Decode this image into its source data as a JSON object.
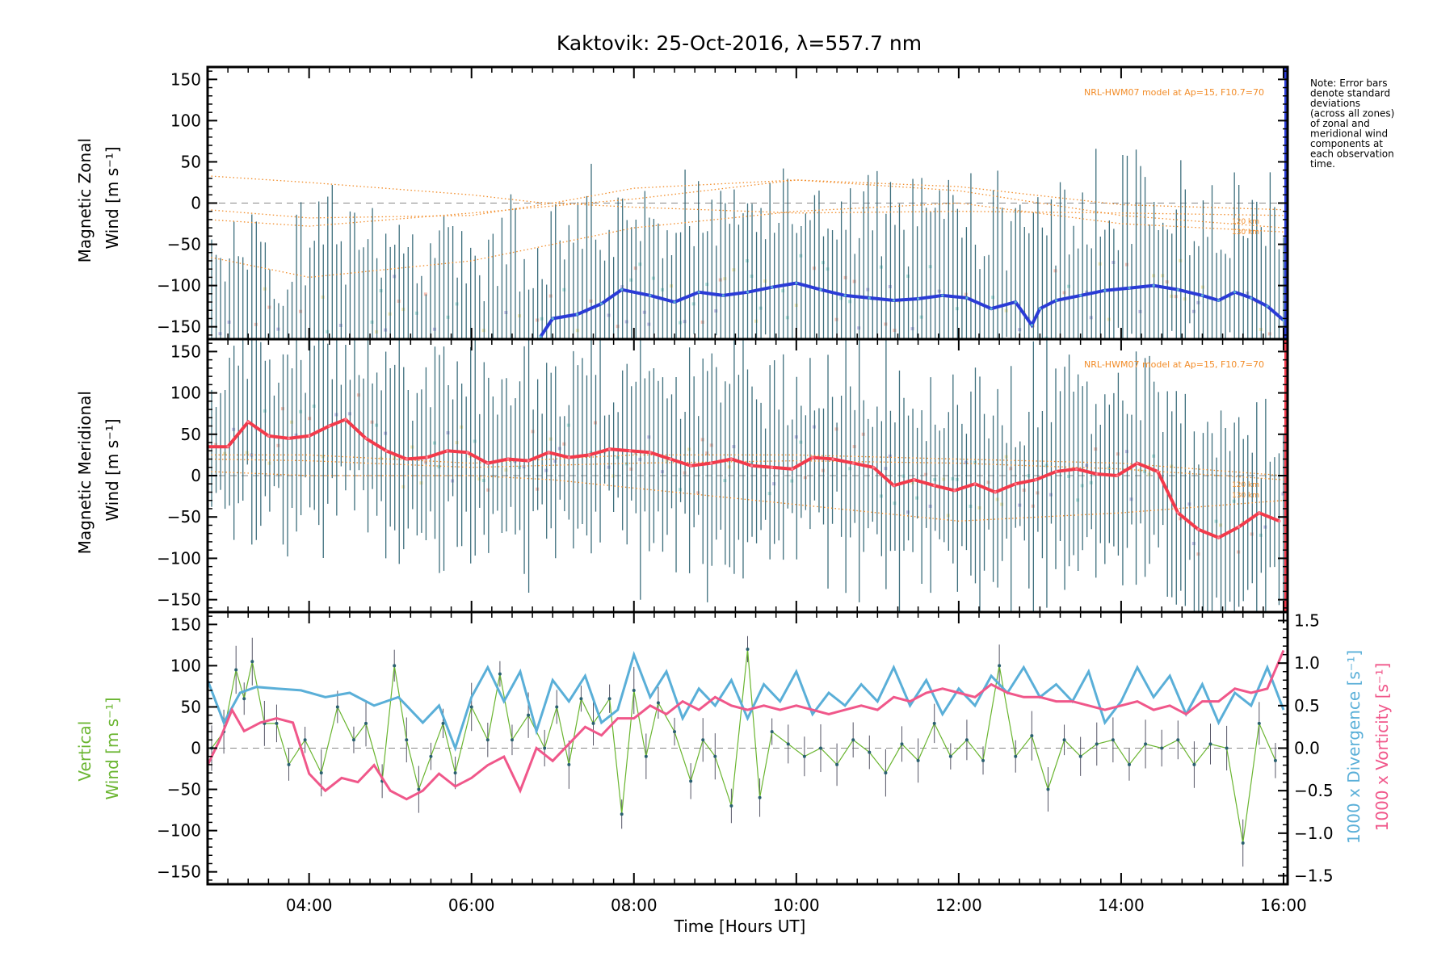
{
  "chart_data": {
    "title": "Kaktovik: 25-Oct-2016, λ=557.7 nm",
    "xlabel": "Time [Hours UT]",
    "x_ticks": [
      "04:00",
      "06:00",
      "08:00",
      "10:00",
      "12:00",
      "14:00",
      "16:00"
    ],
    "x_range_hours": [
      2.75,
      16.05
    ],
    "note_lines": [
      "Note: Error bars",
      "denote standard",
      "deviations",
      "(across all zones)",
      "of zonal and",
      "meridional wind",
      "components at",
      "each observation",
      "time."
    ],
    "colors": {
      "zonal": "#2a3bd6",
      "meridional": "#f23a4b",
      "vertical": "#6ab530",
      "divergence": "#5aafd8",
      "vorticity": "#f0578a",
      "model": "#f28c28",
      "errorbar": "#2a6070"
    },
    "panels": [
      {
        "type": "line",
        "ylabel_lines": [
          "Magnetic Zonal",
          "Wind [m s⁻¹]"
        ],
        "ylim": [
          -165,
          165
        ],
        "yticks": [
          150,
          100,
          50,
          0,
          -50,
          -100,
          -150
        ],
        "model_label": "NRL-HWM07 model at Ap=15, F10.7=70",
        "alt_labels": [
          "120 km",
          "130 km"
        ],
        "series": [
          {
            "x": [
              6.85,
              7.0,
              7.3,
              7.6,
              7.85,
              8.2,
              8.5,
              8.8,
              9.1,
              9.4,
              9.7,
              10.0,
              10.3,
              10.6,
              10.9,
              11.2,
              11.5,
              11.8,
              12.1,
              12.4,
              12.7,
              12.9,
              13.0,
              13.2,
              13.5,
              13.8,
              14.1,
              14.4,
              14.7,
              15.0,
              15.2,
              15.4,
              15.6,
              15.8,
              16.0
            ],
            "y": [
              -162,
              -140,
              -135,
              -122,
              -105,
              -112,
              -120,
              -108,
              -112,
              -108,
              -102,
              -97,
              -105,
              -112,
              -115,
              -118,
              -116,
              -112,
              -115,
              -128,
              -120,
              -148,
              -128,
              -118,
              -112,
              -106,
              -103,
              -100,
              -105,
              -112,
              -118,
              -108,
              -115,
              -125,
              -142
            ]
          }
        ],
        "model_curves": [
          {
            "x": [
              2.75,
              4,
              6,
              6.8,
              8,
              10,
              12,
              14,
              16
            ],
            "y": [
              33,
              25,
              10,
              1,
              -5,
              -12,
              -10,
              -12,
              -15
            ]
          },
          {
            "x": [
              2.75,
              4,
              6,
              7,
              8,
              10,
              12,
              14,
              16
            ],
            "y": [
              -8,
              -18,
              -15,
              0,
              18,
              28,
              15,
              -15,
              -30
            ]
          },
          {
            "x": [
              2.75,
              4,
              6,
              8,
              10,
              12,
              14,
              16
            ],
            "y": [
              -20,
              -28,
              -12,
              5,
              28,
              20,
              -2,
              -8
            ]
          },
          {
            "x": [
              2.75,
              4,
              6,
              8,
              10,
              12,
              14,
              16
            ],
            "y": [
              -65,
              -90,
              -70,
              -30,
              -10,
              0,
              -25,
              -35
            ]
          }
        ]
      },
      {
        "type": "line",
        "ylabel_lines": [
          "Magnetic Meridional",
          "Wind [m s⁻¹]"
        ],
        "ylim": [
          -165,
          165
        ],
        "yticks": [
          150,
          100,
          50,
          0,
          -50,
          -100,
          -150
        ],
        "model_label": "NRL-HWM07 model at Ap=15, F10.7=70",
        "alt_labels": [
          "120 km",
          "130 km"
        ],
        "series": [
          {
            "x": [
              2.75,
              3.0,
              3.25,
              3.5,
              3.75,
              4.0,
              4.25,
              4.45,
              4.7,
              4.95,
              5.2,
              5.45,
              5.7,
              5.95,
              6.2,
              6.45,
              6.7,
              6.95,
              7.2,
              7.45,
              7.7,
              7.95,
              8.2,
              8.45,
              8.7,
              8.95,
              9.2,
              9.45,
              9.7,
              9.95,
              10.2,
              10.45,
              10.7,
              10.95,
              11.2,
              11.45,
              11.7,
              11.95,
              12.2,
              12.45,
              12.7,
              12.95,
              13.2,
              13.45,
              13.7,
              13.95,
              14.2,
              14.45,
              14.7,
              14.95,
              15.2,
              15.45,
              15.7,
              15.95
            ],
            "y": [
              35,
              35,
              65,
              48,
              45,
              48,
              60,
              68,
              45,
              30,
              20,
              22,
              30,
              28,
              15,
              20,
              18,
              28,
              22,
              25,
              32,
              30,
              28,
              20,
              12,
              15,
              20,
              12,
              10,
              8,
              22,
              20,
              15,
              10,
              -12,
              -5,
              -12,
              -18,
              -10,
              -20,
              -10,
              -5,
              5,
              8,
              2,
              0,
              15,
              5,
              -45,
              -65,
              -75,
              -62,
              -45,
              -55
            ]
          }
        ],
        "model_curves": [
          {
            "x": [
              2.75,
              4,
              6,
              8,
              10,
              12,
              14,
              16
            ],
            "y": [
              25,
              25,
              15,
              25,
              25,
              20,
              15,
              0
            ]
          },
          {
            "x": [
              2.75,
              4,
              6,
              8,
              10,
              12,
              14,
              16
            ],
            "y": [
              20,
              18,
              10,
              15,
              18,
              15,
              8,
              -5
            ]
          },
          {
            "x": [
              2.75,
              4,
              6,
              7,
              8,
              10,
              12,
              14,
              16
            ],
            "y": [
              5,
              0,
              0,
              -5,
              -15,
              -35,
              -55,
              -45,
              -30
            ]
          }
        ]
      },
      {
        "type": "line",
        "ylabel_lines": [
          "Vertical",
          "Wind [m s⁻¹]"
        ],
        "y2label_lines": [
          "1000 x Divergence [s⁻¹]",
          "1000 x Vorticity [s⁻¹]"
        ],
        "ylim": [
          -165,
          165
        ],
        "yticks": [
          150,
          100,
          50,
          0,
          -50,
          -100,
          -150
        ],
        "y2lim": [
          -1.6,
          1.6
        ],
        "y2ticks": [
          1.5,
          1.0,
          0.5,
          0.0,
          -0.5,
          -1.0,
          -1.5
        ],
        "y2ticklabels": [
          "1.5",
          "1.0",
          "0.5",
          "0.0",
          "−0.5",
          "−1.0",
          "−1.5"
        ],
        "series": [
          {
            "axis": "left",
            "x": [
              2.8,
              2.95,
              3.1,
              3.2,
              3.3,
              3.45,
              3.6,
              3.75,
              3.95,
              4.15,
              4.35,
              4.55,
              4.7,
              4.9,
              5.05,
              5.2,
              5.35,
              5.5,
              5.65,
              5.8,
              6.0,
              6.2,
              6.35,
              6.5,
              6.7,
              6.9,
              7.05,
              7.2,
              7.35,
              7.5,
              7.7,
              7.85,
              8.0,
              8.15,
              8.3,
              8.5,
              8.7,
              8.85,
              9.0,
              9.2,
              9.4,
              9.55,
              9.7,
              9.9,
              10.1,
              10.3,
              10.5,
              10.7,
              10.9,
              11.1,
              11.3,
              11.5,
              11.7,
              11.9,
              12.1,
              12.3,
              12.5,
              12.7,
              12.9,
              13.1,
              13.3,
              13.5,
              13.7,
              13.9,
              14.1,
              14.3,
              14.5,
              14.7,
              14.9,
              15.1,
              15.3,
              15.5,
              15.7,
              15.9
            ],
            "y": [
              0,
              20,
              95,
              60,
              105,
              30,
              30,
              -20,
              10,
              -30,
              50,
              10,
              30,
              -40,
              100,
              10,
              -50,
              -10,
              30,
              -30,
              50,
              10,
              90,
              10,
              40,
              0,
              50,
              -20,
              60,
              30,
              60,
              -80,
              70,
              -10,
              55,
              20,
              -40,
              10,
              -10,
              -70,
              120,
              -60,
              20,
              5,
              -10,
              0,
              -20,
              10,
              -5,
              -30,
              5,
              -15,
              30,
              -10,
              10,
              -15,
              100,
              -10,
              15,
              -50,
              10,
              -10,
              5,
              10,
              -20,
              5,
              0,
              10,
              -20,
              5,
              0,
              -115,
              30,
              -15
            ]
          },
          {
            "axis": "right",
            "x": [
              2.75,
              2.95,
              3.15,
              3.35,
              3.6,
              3.9,
              4.2,
              4.5,
              4.8,
              5.1,
              5.4,
              5.6,
              5.8,
              6.0,
              6.2,
              6.4,
              6.6,
              6.8,
              7.0,
              7.2,
              7.4,
              7.6,
              7.8,
              8.0,
              8.2,
              8.4,
              8.6,
              8.8,
              9.0,
              9.2,
              9.4,
              9.6,
              9.8,
              10.0,
              10.2,
              10.4,
              10.6,
              10.8,
              11.0,
              11.2,
              11.4,
              11.6,
              11.8,
              12.0,
              12.2,
              12.4,
              12.6,
              12.8,
              13.0,
              13.2,
              13.4,
              13.6,
              13.8,
              14.0,
              14.2,
              14.4,
              14.6,
              14.8,
              15.0,
              15.2,
              15.4,
              15.6,
              15.8,
              16.0
            ],
            "y": [
              0.8,
              0.3,
              0.65,
              0.72,
              0.7,
              0.68,
              0.6,
              0.65,
              0.5,
              0.6,
              0.3,
              0.5,
              0.0,
              0.6,
              0.95,
              0.55,
              0.9,
              0.2,
              0.8,
              0.55,
              0.85,
              0.3,
              0.45,
              1.1,
              0.6,
              0.9,
              0.35,
              0.7,
              0.5,
              0.8,
              0.35,
              0.75,
              0.55,
              0.9,
              0.4,
              0.65,
              0.5,
              0.75,
              0.55,
              0.95,
              0.5,
              0.8,
              0.4,
              0.7,
              0.5,
              0.85,
              0.65,
              0.95,
              0.6,
              0.75,
              0.55,
              0.9,
              0.3,
              0.55,
              0.95,
              0.6,
              0.85,
              0.4,
              0.75,
              0.3,
              0.65,
              0.5,
              0.95,
              0.45
            ]
          },
          {
            "axis": "right",
            "x": [
              2.75,
              2.9,
              3.05,
              3.2,
              3.4,
              3.6,
              3.8,
              4.0,
              4.2,
              4.4,
              4.6,
              4.8,
              5.0,
              5.2,
              5.4,
              5.6,
              5.8,
              6.0,
              6.2,
              6.4,
              6.6,
              6.8,
              7.0,
              7.2,
              7.4,
              7.6,
              7.8,
              8.0,
              8.2,
              8.4,
              8.6,
              8.8,
              9.0,
              9.2,
              9.4,
              9.6,
              9.8,
              10.0,
              10.2,
              10.4,
              10.6,
              10.8,
              11.0,
              11.2,
              11.4,
              11.6,
              11.8,
              12.0,
              12.2,
              12.4,
              12.6,
              12.8,
              13.0,
              13.2,
              13.4,
              13.6,
              13.8,
              14.0,
              14.2,
              14.4,
              14.6,
              14.8,
              15.0,
              15.2,
              15.4,
              15.6,
              15.8,
              16.0
            ],
            "y": [
              -0.2,
              0.1,
              0.45,
              0.2,
              0.3,
              0.35,
              0.3,
              -0.3,
              -0.5,
              -0.35,
              -0.4,
              -0.2,
              -0.5,
              -0.6,
              -0.5,
              -0.3,
              -0.45,
              -0.35,
              -0.2,
              -0.1,
              -0.5,
              0.0,
              -0.15,
              0.05,
              0.25,
              0.15,
              0.35,
              0.35,
              0.5,
              0.4,
              0.55,
              0.45,
              0.6,
              0.5,
              0.45,
              0.5,
              0.45,
              0.5,
              0.45,
              0.4,
              0.45,
              0.5,
              0.45,
              0.6,
              0.55,
              0.65,
              0.7,
              0.65,
              0.6,
              0.75,
              0.65,
              0.6,
              0.6,
              0.55,
              0.55,
              0.5,
              0.45,
              0.5,
              0.55,
              0.45,
              0.5,
              0.4,
              0.55,
              0.55,
              0.7,
              0.65,
              0.7,
              1.15
            ]
          }
        ]
      }
    ]
  }
}
